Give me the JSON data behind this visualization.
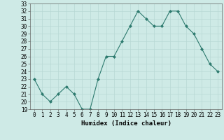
{
  "x": [
    0,
    1,
    2,
    3,
    4,
    5,
    6,
    7,
    8,
    9,
    10,
    11,
    12,
    13,
    14,
    15,
    16,
    17,
    18,
    19,
    20,
    21,
    22,
    23
  ],
  "y": [
    23,
    21,
    20,
    21,
    22,
    21,
    19,
    19,
    23,
    26,
    26,
    28,
    30,
    32,
    31,
    30,
    30,
    32,
    32,
    30,
    29,
    27,
    25,
    24
  ],
  "xlabel": "Humidex (Indice chaleur)",
  "ylim": [
    19,
    33
  ],
  "yticks": [
    19,
    20,
    21,
    22,
    23,
    24,
    25,
    26,
    27,
    28,
    29,
    30,
    31,
    32,
    33
  ],
  "xticks": [
    0,
    1,
    2,
    3,
    4,
    5,
    6,
    7,
    8,
    9,
    10,
    11,
    12,
    13,
    14,
    15,
    16,
    17,
    18,
    19,
    20,
    21,
    22,
    23
  ],
  "line_color": "#2d7a6e",
  "marker": "D",
  "marker_size": 2,
  "bg_color": "#ceeae6",
  "grid_color": "#b8d8d4",
  "label_fontsize": 6.5,
  "tick_fontsize": 5.5
}
